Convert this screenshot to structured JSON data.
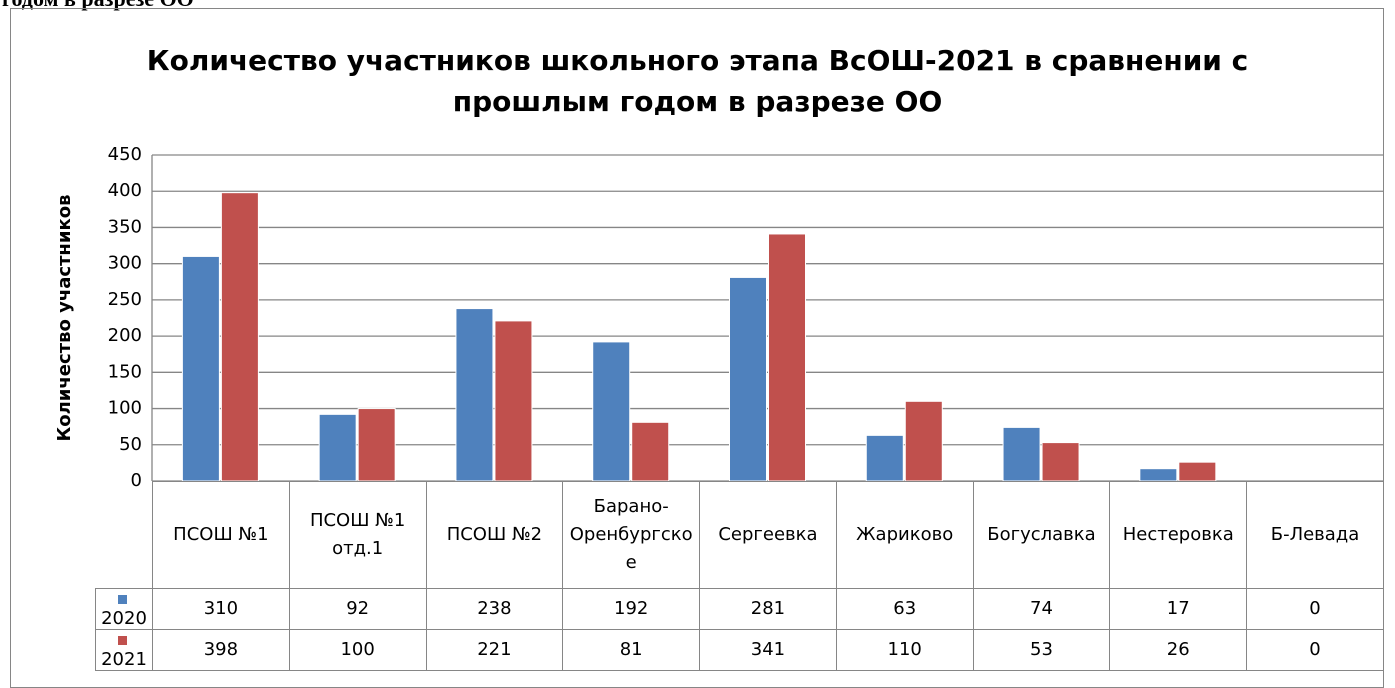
{
  "page_heading": "годом в разрезе ОО",
  "chart_data": {
    "type": "bar",
    "title": "Количество участников школьного этапа ВсОШ-2021 в сравнении с прошлым годом в разрезе ОО",
    "ylabel": "Количество участников",
    "categories": [
      "ПСОШ №1",
      "ПСОШ №1 отд.1",
      "ПСОШ №2",
      "Барано-Оренбургское",
      "Сергеевка",
      "Жариково",
      "Богуславка",
      "Нестеровка",
      "Б-Левада"
    ],
    "series": [
      {
        "name": "2020",
        "color": "#4f81bd",
        "values": [
          310,
          92,
          238,
          192,
          281,
          63,
          74,
          17,
          0
        ]
      },
      {
        "name": "2021",
        "color": "#c0504d",
        "values": [
          398,
          100,
          221,
          81,
          341,
          110,
          53,
          26,
          0
        ]
      }
    ],
    "ylim": [
      0,
      450
    ],
    "yticks": [
      0,
      50,
      100,
      150,
      200,
      250,
      300,
      350,
      400,
      450
    ],
    "grid": true,
    "data_table": true
  }
}
